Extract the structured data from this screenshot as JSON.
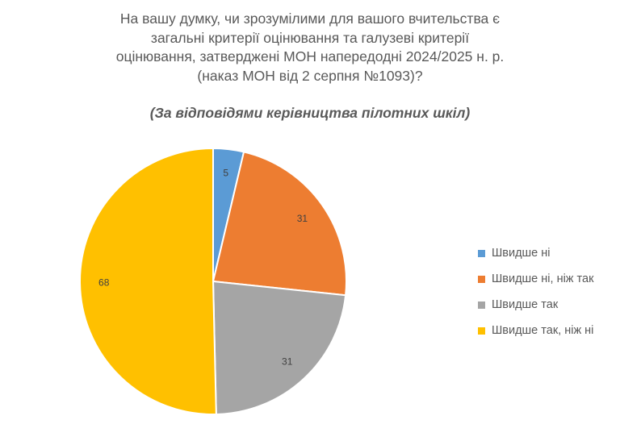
{
  "chart_data": {
    "type": "pie",
    "title_lines": [
      "На вашу думку, чи зрозумілими для вашого вчительства є",
      "загальні критерії оцінювання та галузеві критерії",
      "оцінювання, затверджені МОН напередодні 2024/2025 н. р.",
      "(наказ МОН від 2 серпня №1093)?"
    ],
    "subtitle": "(За відповідями керівництва пілотних шкіл)",
    "categories": [
      "Швидше ні",
      "Швидше ні, ніж так",
      "Швидше так",
      "Швидше так, ніж ні"
    ],
    "values": [
      5,
      31,
      31,
      68
    ],
    "data_labels": [
      "5",
      "31",
      "31",
      "68"
    ],
    "colors": [
      "#5B9BD5",
      "#ED7D31",
      "#A5A5A5",
      "#FFC000"
    ],
    "legend_position": "right"
  }
}
